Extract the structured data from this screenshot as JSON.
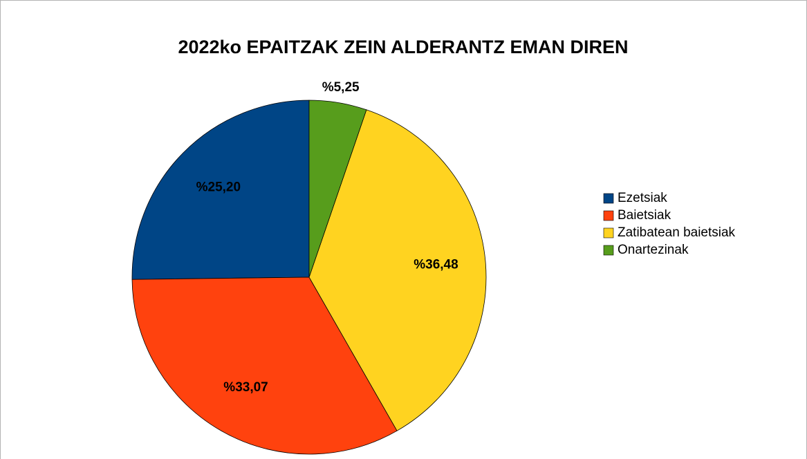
{
  "chart_data": {
    "type": "pie",
    "title": "2022ko EPAITZAK ZEIN ALDERANTZ EMAN DIREN",
    "categories": [
      "Ezetsiak",
      "Baietsiak",
      "Zatibatean baietsiak",
      "Onartezinak"
    ],
    "values": [
      25.2,
      33.07,
      36.48,
      5.25
    ],
    "value_labels": [
      "%25,20",
      "%33,07",
      "%36,48",
      "%5,25"
    ],
    "colors": [
      "#004586",
      "#ff420e",
      "#ffd320",
      "#579d1c"
    ],
    "legend": "right"
  }
}
